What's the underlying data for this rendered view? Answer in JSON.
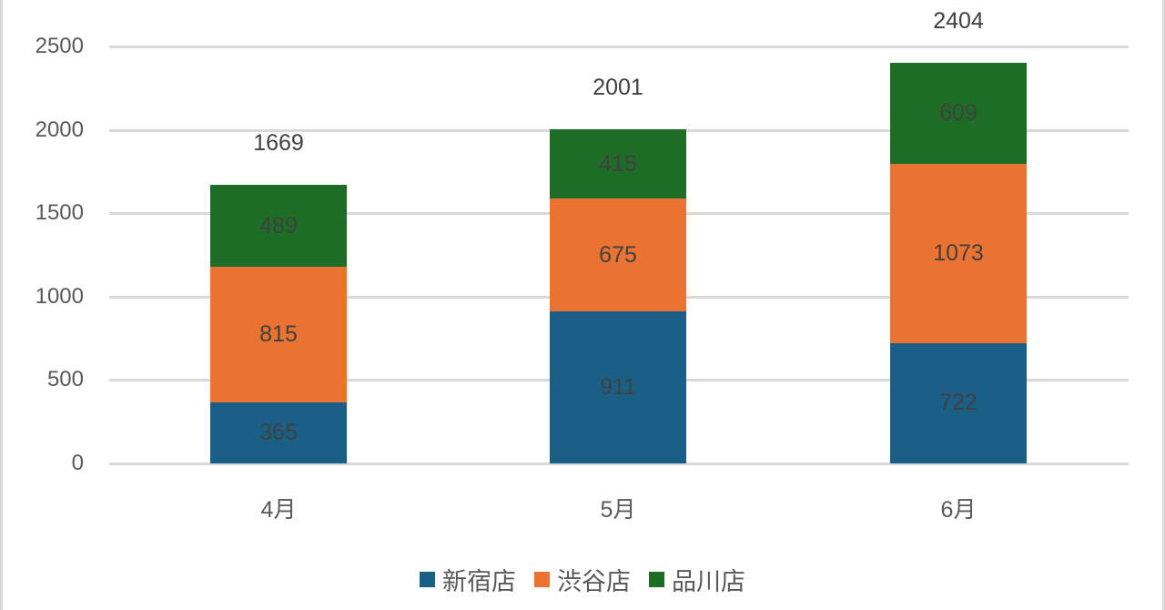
{
  "chart_data": {
    "type": "bar",
    "stacked": true,
    "title": "",
    "xlabel": "",
    "ylabel": "",
    "categories": [
      "4月",
      "5月",
      "6月"
    ],
    "series": [
      {
        "name": "新宿店",
        "color": "#1a5f86",
        "values": [
          365,
          911,
          722
        ]
      },
      {
        "name": "渋谷店",
        "color": "#ea7332",
        "values": [
          815,
          675,
          1073
        ]
      },
      {
        "name": "品川店",
        "color": "#1d6d27",
        "values": [
          489,
          415,
          609
        ]
      }
    ],
    "totals": [
      1669,
      2001,
      2404
    ],
    "yticks": [
      "0",
      "500",
      "1000",
      "1500",
      "2000",
      "2500"
    ],
    "ylim": [
      0,
      2500
    ],
    "grid": true,
    "legend_position": "bottom"
  }
}
